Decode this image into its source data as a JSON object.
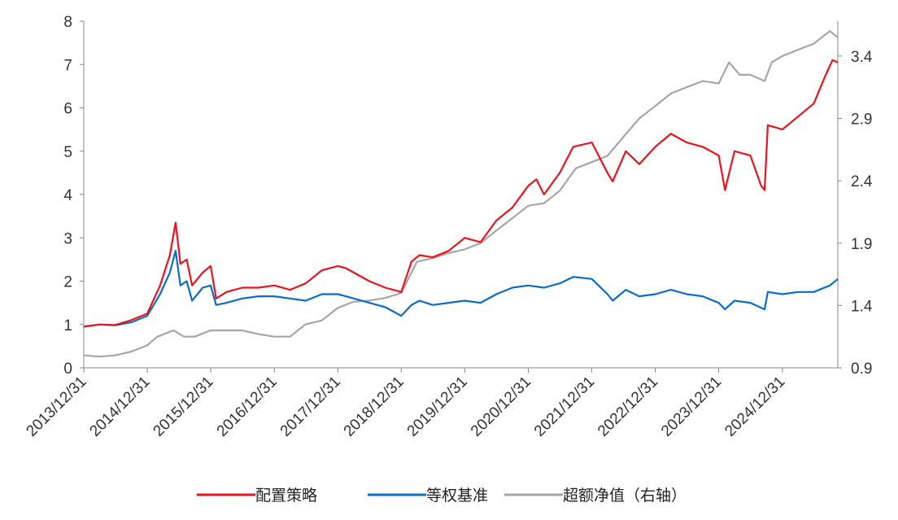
{
  "chart_data": {
    "type": "line",
    "title": "",
    "x_ticks": [
      "2013/12/31",
      "2014/12/31",
      "2015/12/31",
      "2016/12/31",
      "2017/12/31",
      "2018/12/31",
      "2019/12/31",
      "2020/12/31",
      "2021/12/31",
      "2022/12/31",
      "2023/12/31",
      "2024/12/31"
    ],
    "y_left": {
      "ticks": [
        "0",
        "1",
        "2",
        "3",
        "4",
        "5",
        "6",
        "7",
        "8"
      ],
      "range": [
        0,
        8
      ]
    },
    "y_right": {
      "ticks": [
        "0.9",
        "1.4",
        "1.9",
        "2.4",
        "2.9",
        "3.4"
      ],
      "range": [
        0.9,
        3.68
      ]
    },
    "x_range": [
      "2013-12-31",
      "2025-11-15"
    ],
    "grid": false,
    "legend_position": "bottom",
    "colors": {
      "strategy": "#e8141e",
      "benchmark": "#0c6cc9",
      "excess": "#a6a6a6",
      "axis": "#888888"
    },
    "series": [
      {
        "name": "配置策略",
        "axis": "left",
        "color": "#e8141e",
        "points": [
          [
            "2013-12-31",
            0.95
          ],
          [
            "2014-03-31",
            1.0
          ],
          [
            "2014-06-30",
            0.99
          ],
          [
            "2014-09-30",
            1.1
          ],
          [
            "2014-12-31",
            1.25
          ],
          [
            "2015-03-15",
            1.9
          ],
          [
            "2015-05-10",
            2.6
          ],
          [
            "2015-06-12",
            3.35
          ],
          [
            "2015-07-10",
            2.4
          ],
          [
            "2015-08-15",
            2.5
          ],
          [
            "2015-09-15",
            1.9
          ],
          [
            "2015-11-15",
            2.2
          ],
          [
            "2015-12-31",
            2.35
          ],
          [
            "2016-01-31",
            1.6
          ],
          [
            "2016-03-31",
            1.75
          ],
          [
            "2016-06-30",
            1.85
          ],
          [
            "2016-09-30",
            1.85
          ],
          [
            "2016-12-31",
            1.9
          ],
          [
            "2017-03-31",
            1.8
          ],
          [
            "2017-06-30",
            1.95
          ],
          [
            "2017-09-30",
            2.25
          ],
          [
            "2017-12-31",
            2.35
          ],
          [
            "2018-02-15",
            2.3
          ],
          [
            "2018-06-30",
            2.0
          ],
          [
            "2018-09-30",
            1.85
          ],
          [
            "2018-12-31",
            1.75
          ],
          [
            "2019-02-28",
            2.45
          ],
          [
            "2019-04-15",
            2.6
          ],
          [
            "2019-06-30",
            2.55
          ],
          [
            "2019-09-30",
            2.7
          ],
          [
            "2019-12-31",
            3.0
          ],
          [
            "2020-03-31",
            2.9
          ],
          [
            "2020-06-30",
            3.4
          ],
          [
            "2020-09-30",
            3.7
          ],
          [
            "2020-12-31",
            4.2
          ],
          [
            "2021-02-15",
            4.35
          ],
          [
            "2021-03-31",
            4.0
          ],
          [
            "2021-06-30",
            4.5
          ],
          [
            "2021-09-15",
            5.1
          ],
          [
            "2021-12-31",
            5.2
          ],
          [
            "2022-03-31",
            4.5
          ],
          [
            "2022-04-30",
            4.3
          ],
          [
            "2022-07-15",
            5.0
          ],
          [
            "2022-09-30",
            4.7
          ],
          [
            "2022-12-31",
            5.1
          ],
          [
            "2023-03-31",
            5.4
          ],
          [
            "2023-06-30",
            5.2
          ],
          [
            "2023-09-30",
            5.1
          ],
          [
            "2023-12-31",
            4.9
          ],
          [
            "2024-02-05",
            4.1
          ],
          [
            "2024-03-31",
            5.0
          ],
          [
            "2024-06-30",
            4.9
          ],
          [
            "2024-08-31",
            4.2
          ],
          [
            "2024-09-20",
            4.1
          ],
          [
            "2024-10-08",
            5.6
          ],
          [
            "2024-12-31",
            5.5
          ],
          [
            "2025-03-31",
            5.8
          ],
          [
            "2025-06-30",
            6.1
          ],
          [
            "2025-08-31",
            6.7
          ],
          [
            "2025-10-15",
            7.1
          ],
          [
            "2025-11-15",
            7.05
          ]
        ]
      },
      {
        "name": "等权基准",
        "axis": "left",
        "color": "#0c6cc9",
        "points": [
          [
            "2013-12-31",
            0.95
          ],
          [
            "2014-03-31",
            1.0
          ],
          [
            "2014-06-30",
            0.98
          ],
          [
            "2014-09-30",
            1.05
          ],
          [
            "2014-12-31",
            1.2
          ],
          [
            "2015-03-15",
            1.7
          ],
          [
            "2015-05-10",
            2.2
          ],
          [
            "2015-06-12",
            2.7
          ],
          [
            "2015-07-10",
            1.9
          ],
          [
            "2015-08-15",
            2.0
          ],
          [
            "2015-09-15",
            1.55
          ],
          [
            "2015-11-15",
            1.85
          ],
          [
            "2015-12-31",
            1.9
          ],
          [
            "2016-01-31",
            1.45
          ],
          [
            "2016-03-31",
            1.5
          ],
          [
            "2016-06-30",
            1.6
          ],
          [
            "2016-09-30",
            1.65
          ],
          [
            "2016-12-31",
            1.65
          ],
          [
            "2017-03-31",
            1.6
          ],
          [
            "2017-06-30",
            1.55
          ],
          [
            "2017-09-30",
            1.7
          ],
          [
            "2017-12-31",
            1.7
          ],
          [
            "2018-02-15",
            1.65
          ],
          [
            "2018-06-30",
            1.5
          ],
          [
            "2018-09-30",
            1.4
          ],
          [
            "2018-12-31",
            1.2
          ],
          [
            "2019-02-28",
            1.45
          ],
          [
            "2019-04-15",
            1.55
          ],
          [
            "2019-06-30",
            1.45
          ],
          [
            "2019-09-30",
            1.5
          ],
          [
            "2019-12-31",
            1.55
          ],
          [
            "2020-03-31",
            1.5
          ],
          [
            "2020-06-30",
            1.7
          ],
          [
            "2020-09-30",
            1.85
          ],
          [
            "2020-12-31",
            1.9
          ],
          [
            "2021-03-31",
            1.85
          ],
          [
            "2021-06-30",
            1.95
          ],
          [
            "2021-09-15",
            2.1
          ],
          [
            "2021-12-31",
            2.05
          ],
          [
            "2022-03-31",
            1.7
          ],
          [
            "2022-04-30",
            1.55
          ],
          [
            "2022-07-15",
            1.8
          ],
          [
            "2022-09-30",
            1.65
          ],
          [
            "2022-12-31",
            1.7
          ],
          [
            "2023-03-31",
            1.8
          ],
          [
            "2023-06-30",
            1.7
          ],
          [
            "2023-09-30",
            1.65
          ],
          [
            "2023-12-31",
            1.5
          ],
          [
            "2024-02-05",
            1.35
          ],
          [
            "2024-03-31",
            1.55
          ],
          [
            "2024-06-30",
            1.5
          ],
          [
            "2024-09-20",
            1.35
          ],
          [
            "2024-10-08",
            1.75
          ],
          [
            "2024-12-31",
            1.7
          ],
          [
            "2025-03-31",
            1.75
          ],
          [
            "2025-06-30",
            1.75
          ],
          [
            "2025-09-30",
            1.9
          ],
          [
            "2025-11-15",
            2.05
          ]
        ]
      },
      {
        "name": "超额净值（右轴）",
        "axis": "right",
        "color": "#a6a6a6",
        "points": [
          [
            "2013-12-31",
            1.0
          ],
          [
            "2014-03-31",
            0.99
          ],
          [
            "2014-06-30",
            1.0
          ],
          [
            "2014-09-30",
            1.03
          ],
          [
            "2014-12-31",
            1.08
          ],
          [
            "2015-02-28",
            1.15
          ],
          [
            "2015-05-31",
            1.2
          ],
          [
            "2015-07-31",
            1.15
          ],
          [
            "2015-09-30",
            1.15
          ],
          [
            "2015-12-31",
            1.2
          ],
          [
            "2016-03-31",
            1.2
          ],
          [
            "2016-06-30",
            1.2
          ],
          [
            "2016-09-30",
            1.17
          ],
          [
            "2016-12-31",
            1.15
          ],
          [
            "2017-03-31",
            1.15
          ],
          [
            "2017-06-30",
            1.25
          ],
          [
            "2017-09-30",
            1.28
          ],
          [
            "2017-12-31",
            1.38
          ],
          [
            "2018-03-31",
            1.43
          ],
          [
            "2018-06-30",
            1.44
          ],
          [
            "2018-09-30",
            1.46
          ],
          [
            "2018-12-31",
            1.5
          ],
          [
            "2019-03-31",
            1.75
          ],
          [
            "2019-06-30",
            1.78
          ],
          [
            "2019-09-30",
            1.82
          ],
          [
            "2019-12-31",
            1.85
          ],
          [
            "2020-03-31",
            1.9
          ],
          [
            "2020-06-30",
            2.0
          ],
          [
            "2020-09-30",
            2.1
          ],
          [
            "2020-12-31",
            2.2
          ],
          [
            "2021-03-31",
            2.22
          ],
          [
            "2021-06-30",
            2.32
          ],
          [
            "2021-09-30",
            2.5
          ],
          [
            "2021-12-31",
            2.55
          ],
          [
            "2022-03-31",
            2.6
          ],
          [
            "2022-06-30",
            2.75
          ],
          [
            "2022-09-30",
            2.9
          ],
          [
            "2022-12-31",
            3.0
          ],
          [
            "2023-03-31",
            3.1
          ],
          [
            "2023-06-30",
            3.15
          ],
          [
            "2023-09-30",
            3.2
          ],
          [
            "2023-12-31",
            3.18
          ],
          [
            "2024-02-28",
            3.35
          ],
          [
            "2024-04-30",
            3.25
          ],
          [
            "2024-06-30",
            3.25
          ],
          [
            "2024-09-20",
            3.2
          ],
          [
            "2024-10-31",
            3.35
          ],
          [
            "2024-12-31",
            3.4
          ],
          [
            "2025-03-31",
            3.45
          ],
          [
            "2025-06-30",
            3.5
          ],
          [
            "2025-09-30",
            3.6
          ],
          [
            "2025-11-15",
            3.55
          ]
        ]
      }
    ]
  }
}
